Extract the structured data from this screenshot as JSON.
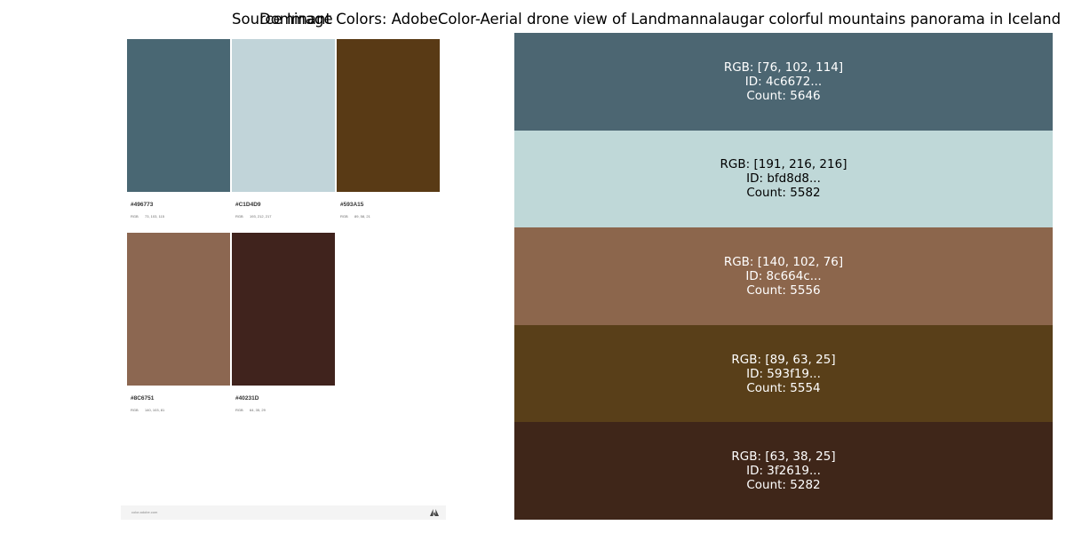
{
  "titles": {
    "left": "Source Image",
    "right": "Dominant Colors: AdobeColor-Aerial drone view of Landmannalaugar colorful mountains panorama in Iceland"
  },
  "source_image": {
    "swatches": [
      {
        "color": "#496773",
        "hex": "#496773",
        "rgb_key": "RGB",
        "rgb": "73, 103, 115"
      },
      {
        "color": "#C1D4D9",
        "hex": "#C1D4D9",
        "rgb_key": "RGB",
        "rgb": "193, 212, 217"
      },
      {
        "color": "#593A15",
        "hex": "#593A15",
        "rgb_key": "RGB",
        "rgb": "89, 58, 21"
      },
      {
        "color": "#8C6751",
        "hex": "#8C6751",
        "rgb_key": "RGB",
        "rgb": "140, 103, 81"
      },
      {
        "color": "#40231D",
        "hex": "#40231D",
        "rgb_key": "RGB",
        "rgb": "64, 35, 29"
      }
    ],
    "footer_url": "color.adobe.com",
    "footer_logo": "adobe-logo-icon"
  },
  "dominant_colors": [
    {
      "rgb": "RGB: [76, 102, 114]",
      "id": "ID: 4c6672...",
      "count": "Count: 5646",
      "bg": "#4c6672",
      "fg": "#ffffff"
    },
    {
      "rgb": "RGB: [191, 216, 216]",
      "id": "ID: bfd8d8...",
      "count": "Count: 5582",
      "bg": "#bfd8d8",
      "fg": "#000000"
    },
    {
      "rgb": "RGB: [140, 102, 76]",
      "id": "ID: 8c664c...",
      "count": "Count: 5556",
      "bg": "#8c664c",
      "fg": "#ffffff"
    },
    {
      "rgb": "RGB: [89, 63, 25]",
      "id": "ID: 593f19...",
      "count": "Count: 5554",
      "bg": "#593f19",
      "fg": "#ffffff"
    },
    {
      "rgb": "RGB: [63, 38, 25]",
      "id": "ID: 3f2619...",
      "count": "Count: 5282",
      "bg": "#3f2619",
      "fg": "#ffffff"
    }
  ]
}
